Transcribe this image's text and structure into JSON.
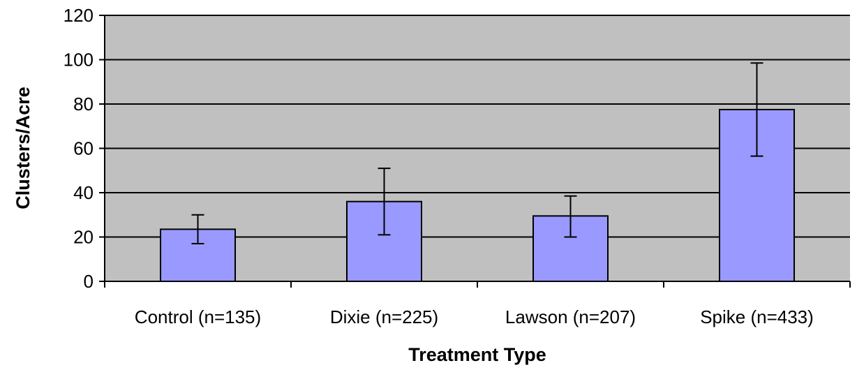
{
  "chart_data": {
    "type": "bar",
    "title": "",
    "xlabel": "Treatment Type",
    "ylabel": "Clusters/Acre",
    "categories": [
      "Control (n=135)",
      "Dixie (n=225)",
      "Lawson (n=207)",
      "Spike (n=433)"
    ],
    "values": [
      23.5,
      36,
      29.5,
      77.5
    ],
    "error_low": [
      17,
      21,
      20,
      56.5
    ],
    "error_high": [
      30,
      51,
      38.5,
      98.5
    ],
    "ylim": [
      0,
      120
    ],
    "yticks": [
      0,
      20,
      40,
      60,
      80,
      100,
      120
    ],
    "grid": true,
    "colors": {
      "plot_background": "#c0c0c0",
      "bar_fill": "#9999ff",
      "bar_stroke": "#000000",
      "gridline": "#000000"
    }
  }
}
